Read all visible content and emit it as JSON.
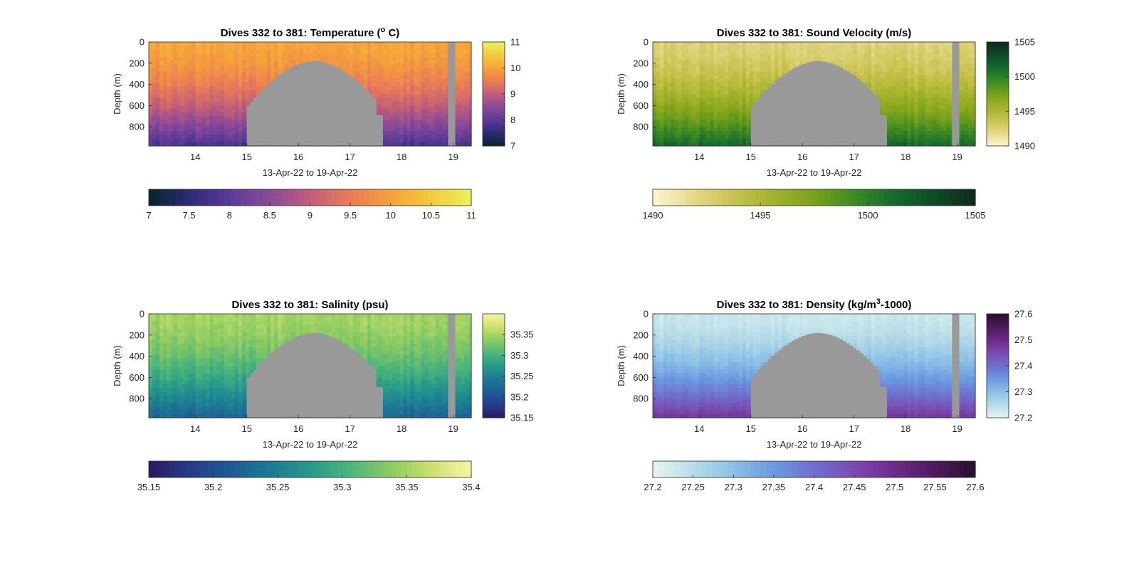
{
  "figure": {
    "background": "#ffffff",
    "bathymetry_color": "#999999"
  },
  "chart_data": [
    {
      "type": "heatmap",
      "variable": "temperature",
      "title": "Dives 332 to 381: Temperature (",
      "title_sup": "o",
      "title_tail": " C)",
      "xlabel": "13-Apr-22 to 19-Apr-22",
      "ylabel": "Depth (m)",
      "x_ticks": [
        "14",
        "15",
        "16",
        "17",
        "18",
        "19"
      ],
      "y_ticks": [
        "0",
        "200",
        "400",
        "600",
        "800"
      ],
      "xlim": [
        13.1,
        19.35
      ],
      "ylim": [
        0,
        980
      ],
      "clim": [
        7,
        11
      ],
      "colorbar_ticks": [
        "7",
        "8",
        "9",
        "10",
        "11"
      ],
      "hcolorbar_ticks": [
        "7",
        "7.5",
        "8",
        "8.5",
        "9",
        "9.5",
        "10",
        "10.5",
        "11"
      ],
      "colormap": [
        "#08232b",
        "#2c2b73",
        "#5a3a98",
        "#8a4a98",
        "#c05e7a",
        "#ea7c55",
        "#f6a23a",
        "#f6c93c",
        "#e8f35e"
      ],
      "surface_value": 10.05,
      "bottom_value": 7.8,
      "noise": 0.18,
      "bathymetry_max_depth": 180,
      "gap_x": 18.9
    },
    {
      "type": "heatmap",
      "variable": "sound_velocity",
      "title": "Dives 332 to 381: Sound Velocity (m/s)",
      "title_sup": "",
      "title_tail": "",
      "xlabel": "13-Apr-22 to 19-Apr-22",
      "ylabel": "Depth (m)",
      "x_ticks": [
        "14",
        "15",
        "16",
        "17",
        "18",
        "19"
      ],
      "y_ticks": [
        "0",
        "200",
        "400",
        "600",
        "800"
      ],
      "xlim": [
        13.1,
        19.35
      ],
      "ylim": [
        0,
        980
      ],
      "clim": [
        1490,
        1505
      ],
      "colorbar_ticks": [
        "1490",
        "1495",
        "1500",
        "1505"
      ],
      "hcolorbar_ticks": [
        "1490",
        "1495",
        "1500",
        "1505"
      ],
      "colormap": [
        "#fdf8d0",
        "#e6d98a",
        "#c9c350",
        "#a3b22a",
        "#78a21a",
        "#3e8a24",
        "#146a2c",
        "#0f4a2a",
        "#0e2a1c"
      ],
      "surface_value": 1492.5,
      "bottom_value": 1501.3,
      "noise": 0.7,
      "bathymetry_max_depth": 180,
      "gap_x": 18.9
    },
    {
      "type": "heatmap",
      "variable": "salinity",
      "title": "Dives 332 to 381: Salinity (psu)",
      "title_sup": "",
      "title_tail": "",
      "xlabel": "13-Apr-22 to 19-Apr-22",
      "ylabel": "Depth (m)",
      "x_ticks": [
        "14",
        "15",
        "16",
        "17",
        "18",
        "19"
      ],
      "y_ticks": [
        "0",
        "200",
        "400",
        "600",
        "800"
      ],
      "xlim": [
        13.1,
        19.35
      ],
      "ylim": [
        0,
        980
      ],
      "clim": [
        35.15,
        35.4
      ],
      "colorbar_ticks": [
        "35.15",
        "35.2",
        "35.25",
        "35.3",
        "35.35"
      ],
      "hcolorbar_ticks": [
        "35.15",
        "35.2",
        "35.25",
        "35.3",
        "35.35",
        "35.4"
      ],
      "colormap": [
        "#2a1a5e",
        "#243b8a",
        "#1e5a96",
        "#1c7a93",
        "#26998a",
        "#4db57a",
        "#8ccb62",
        "#cbe06c",
        "#fbf2a8"
      ],
      "surface_value": 35.35,
      "bottom_value": 35.22,
      "noise": 0.012,
      "bathymetry_max_depth": 180,
      "gap_x": 18.9
    },
    {
      "type": "heatmap",
      "variable": "density",
      "title": "Dives 332 to 381: Density (kg/m",
      "title_sup": "3",
      "title_tail": "-1000)",
      "xlabel": "13-Apr-22 to 19-Apr-22",
      "ylabel": "Depth (m)",
      "x_ticks": [
        "14",
        "15",
        "16",
        "17",
        "18",
        "19"
      ],
      "y_ticks": [
        "0",
        "200",
        "400",
        "600",
        "800"
      ],
      "xlim": [
        13.1,
        19.35
      ],
      "ylim": [
        0,
        980
      ],
      "clim": [
        27.2,
        27.6
      ],
      "colorbar_ticks": [
        "27.2",
        "27.3",
        "27.4",
        "27.5",
        "27.6"
      ],
      "hcolorbar_ticks": [
        "27.2",
        "27.25",
        "27.3",
        "27.35",
        "27.4",
        "27.45",
        "27.5",
        "27.55",
        "27.6"
      ],
      "colormap": [
        "#e8f4f2",
        "#b8dde8",
        "#8cc0e6",
        "#6a9ae0",
        "#6f6fd0",
        "#7a4ab0",
        "#6e2a8a",
        "#4e1a5e",
        "#2a0f2a"
      ],
      "surface_value": 27.23,
      "bottom_value": 27.48,
      "noise": 0.012,
      "bathymetry_max_depth": 180,
      "gap_x": 18.9
    }
  ]
}
